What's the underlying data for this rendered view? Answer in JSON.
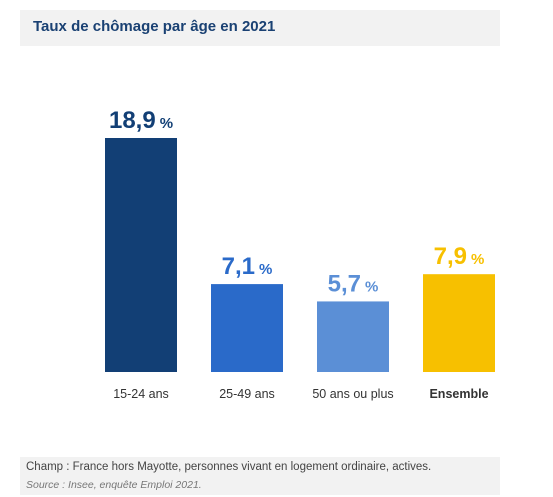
{
  "title": "Taux de chômage par âge en 2021",
  "footnote": "Champ : France hors Mayotte, personnes vivant en logement ordinaire, actives.",
  "source": "Source : Insee, enquête Emploi 2021.",
  "chart_data": {
    "type": "bar",
    "title": "Taux de chômage par âge en 2021",
    "xlabel": "",
    "ylabel": "",
    "categories": [
      "15-24 ans",
      "25-49 ans",
      "50 ans ou plus",
      "Ensemble"
    ],
    "values": [
      18.9,
      7.1,
      5.7,
      7.9
    ],
    "value_labels": [
      "18,9",
      "7,1",
      "5,7",
      "7,9"
    ],
    "unit": "%",
    "colors": [
      "#123f75",
      "#2a6ac9",
      "#5b8fd6",
      "#f7c000"
    ],
    "bold_categories": [
      "Ensemble"
    ],
    "grid": false,
    "ylim": [
      0,
      20
    ]
  }
}
